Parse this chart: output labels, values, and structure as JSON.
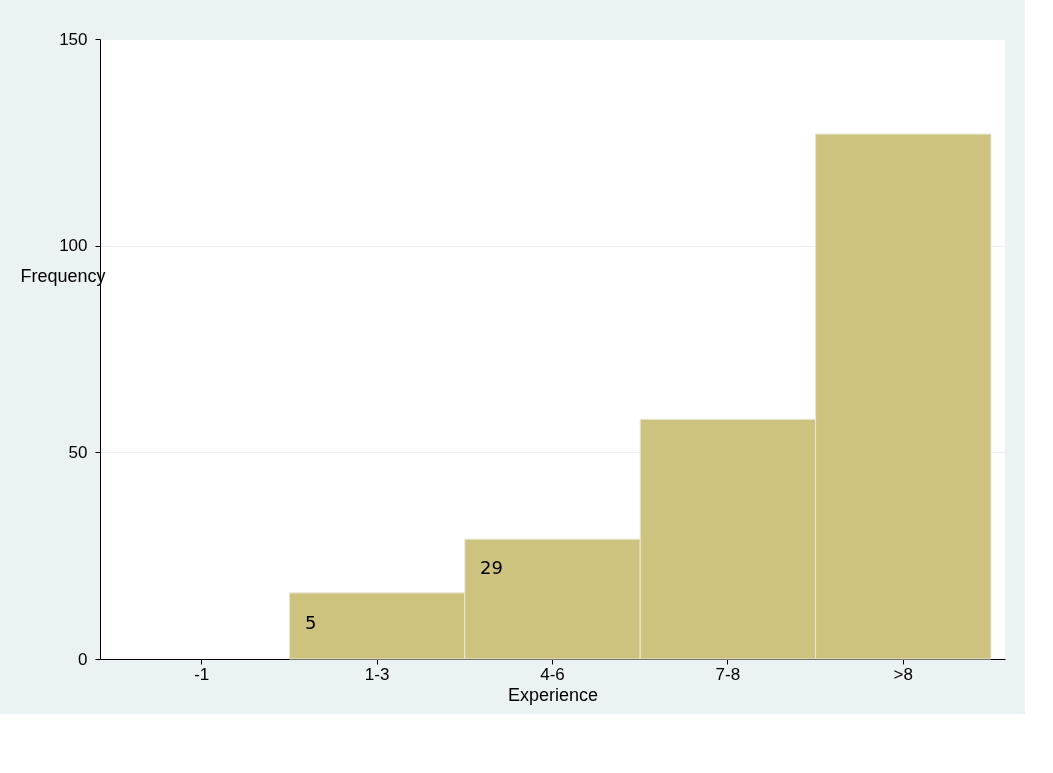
{
  "chart_data": {
    "type": "bar",
    "xlabel": "Experience",
    "ylabel": "Frequency",
    "categories": [
      "-1",
      "1-3",
      "4-6",
      "7-8",
      ">8"
    ],
    "values": [
      null,
      16,
      29,
      58,
      127
    ],
    "color": "#cdc37f",
    "ylim": [
      0,
      150
    ],
    "yticks": [
      0,
      50,
      100,
      150
    ],
    "grid": "y",
    "annotations": [
      "5",
      "29"
    ]
  }
}
